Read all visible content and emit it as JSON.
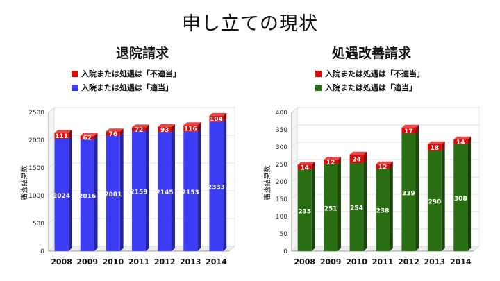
{
  "page_title": "申し立ての現状",
  "colors": {
    "red": "#dd0a0a",
    "blue": "#3c3cf5",
    "green": "#2a6e14"
  },
  "chart_data": [
    {
      "type": "bar",
      "title": "退院請求",
      "ylabel": "審査結果数",
      "xlabel": "",
      "ylim": [
        0,
        2500
      ],
      "yticks": [
        0,
        500,
        1000,
        1500,
        2000,
        2500
      ],
      "categories": [
        "2008",
        "2009",
        "2010",
        "2011",
        "2012",
        "2013",
        "2014"
      ],
      "stacked": true,
      "legend_position": "top-left",
      "series": [
        {
          "name": "入院または処遇は「不適当」",
          "color": "#dd0a0a",
          "values": [
            111,
            62,
            76,
            72,
            93,
            116,
            104
          ]
        },
        {
          "name": "入院または処遇は「適当」",
          "color": "#3c3cf5",
          "values": [
            2024,
            2016,
            2081,
            2159,
            2145,
            2153,
            2333
          ]
        }
      ]
    },
    {
      "type": "bar",
      "title": "処遇改善請求",
      "ylabel": "審査結果数",
      "xlabel": "",
      "ylim": [
        0,
        400
      ],
      "yticks": [
        0,
        50,
        100,
        150,
        200,
        250,
        300,
        350,
        400
      ],
      "categories": [
        "2008",
        "2009",
        "2010",
        "2011",
        "2012",
        "2013",
        "2014"
      ],
      "stacked": true,
      "legend_position": "top-left",
      "series": [
        {
          "name": "入院または処遇は「不適当」",
          "color": "#dd0a0a",
          "values": [
            14,
            12,
            24,
            12,
            17,
            18,
            14
          ]
        },
        {
          "name": "入院または処遇は「適当」",
          "color": "#2a6e14",
          "values": [
            235,
            251,
            254,
            238,
            339,
            290,
            308
          ]
        }
      ]
    }
  ]
}
